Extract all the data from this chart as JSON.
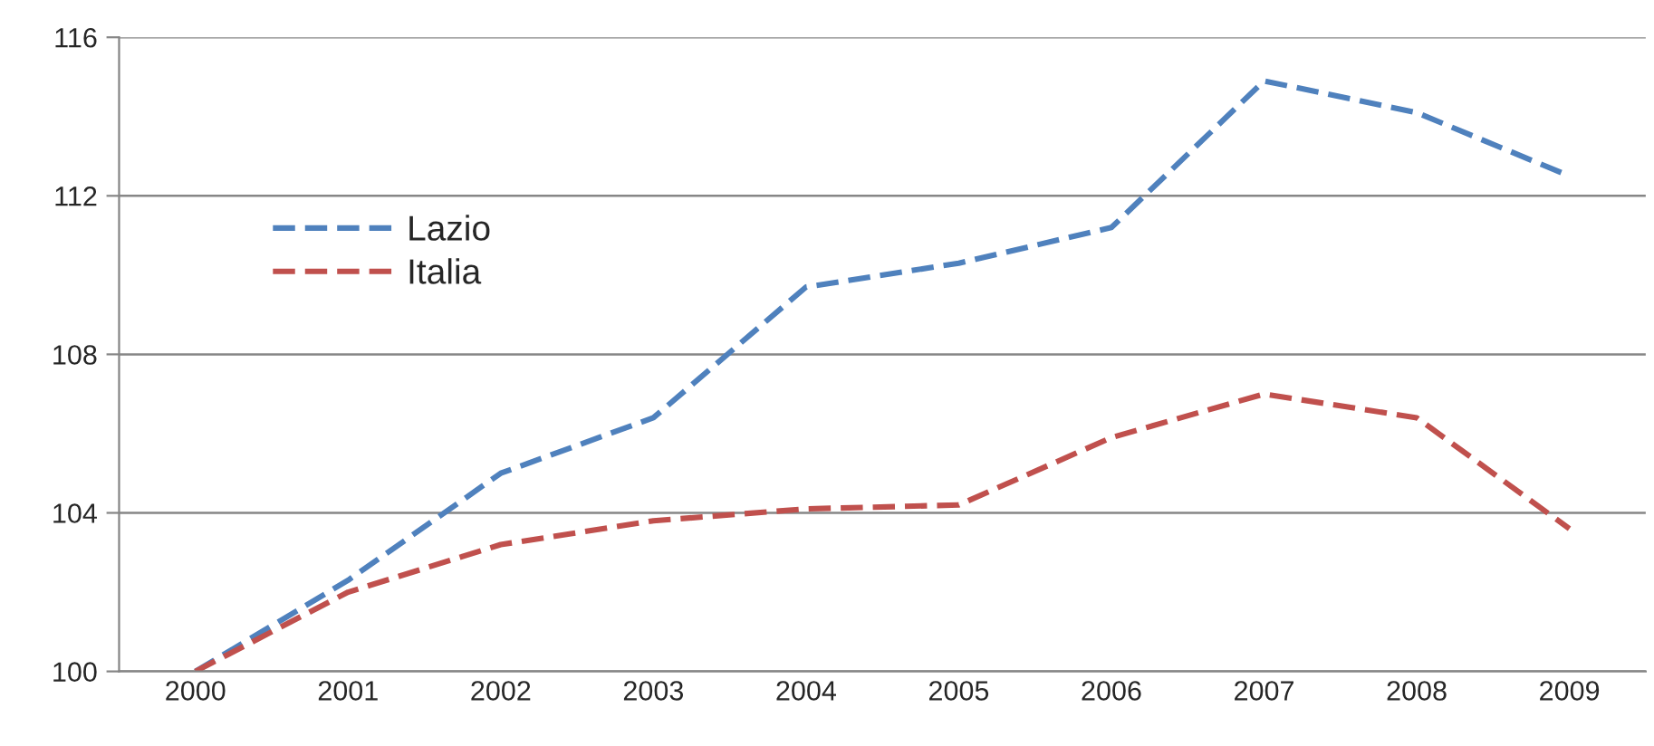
{
  "chart_data": {
    "type": "line",
    "categories": [
      "2000",
      "2001",
      "2002",
      "2003",
      "2004",
      "2005",
      "2006",
      "2007",
      "2008",
      "2009"
    ],
    "series": [
      {
        "name": "Lazio",
        "color": "#4f81bd",
        "values": [
          100,
          102.3,
          105.0,
          106.4,
          109.7,
          110.3,
          111.2,
          114.9,
          114.1,
          112.5
        ]
      },
      {
        "name": "Italia",
        "color": "#c0504d",
        "values": [
          100,
          102.0,
          103.2,
          103.8,
          104.1,
          104.2,
          105.9,
          107.0,
          106.4,
          103.6
        ]
      }
    ],
    "ylim": [
      100,
      116
    ],
    "yticks": [
      100,
      104,
      108,
      112,
      116
    ],
    "grid": "y",
    "legend": "top left",
    "line_style": "dashed",
    "marker": "none"
  }
}
